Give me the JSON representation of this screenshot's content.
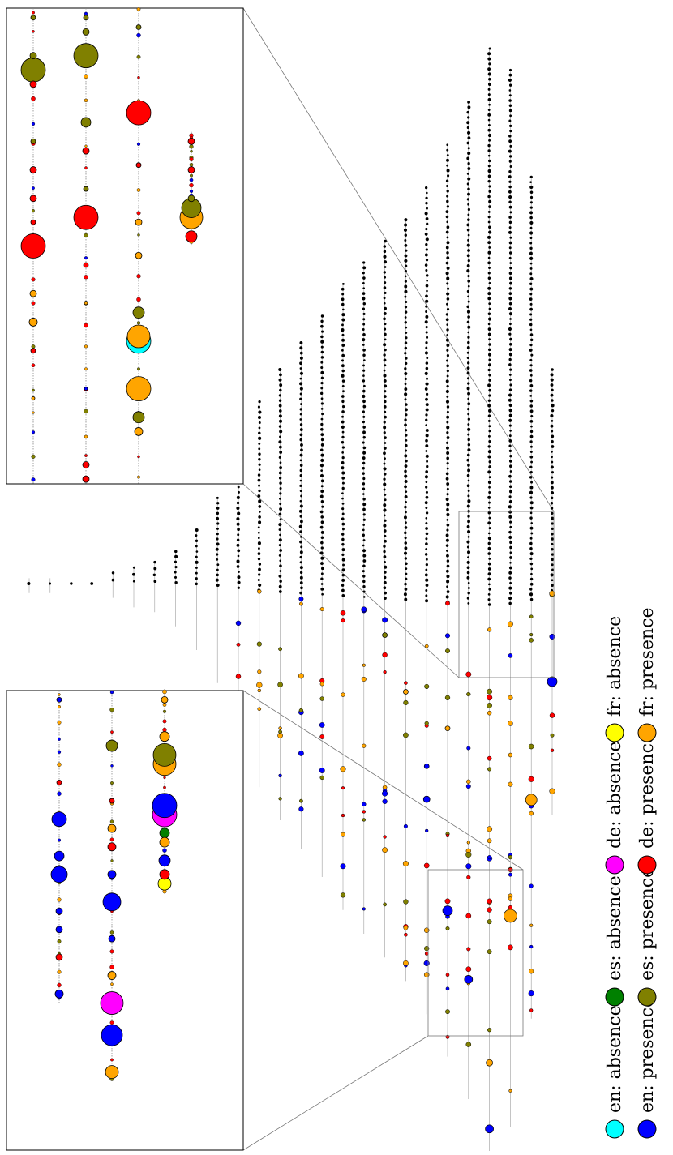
{
  "chart_data": {
    "type": "scatter",
    "title": "",
    "xlabel": "",
    "ylabel": "",
    "grid": false,
    "legend_placement": "right (rotated)",
    "legend": [
      {
        "label": "en: absence",
        "color": "#00ffff"
      },
      {
        "label": "en: presence",
        "color": "#0000ff"
      },
      {
        "label": "es: absence",
        "color": "#008000"
      },
      {
        "label": "es: presence",
        "color": "#808000"
      },
      {
        "label": "de: absence",
        "color": "#ff00ff"
      },
      {
        "label": "de: presence",
        "color": "#ff0000"
      },
      {
        "label": "fr: absence",
        "color": "#ffff00"
      },
      {
        "label": "fr: presence",
        "color": "#ffa500"
      }
    ],
    "main_tree": {
      "node_color": "#000000",
      "edge_color": "#9e9e9e",
      "columns": [
        {
          "size": 1,
          "spread": 1
        },
        {
          "size": 1,
          "spread": 1
        },
        {
          "size": 1,
          "spread": 1
        },
        {
          "size": 1,
          "spread": 1
        },
        {
          "size": 2,
          "spread": 1
        },
        {
          "size": 3,
          "spread": 2
        },
        {
          "size": 4,
          "spread": 2
        },
        {
          "size": 6,
          "spread": 3
        },
        {
          "size": 10,
          "spread": 4
        },
        {
          "size": 16,
          "spread": 5
        },
        {
          "size": 24,
          "spread": 7
        },
        {
          "size": 34,
          "spread": 9
        },
        {
          "size": 40,
          "spread": 10
        },
        {
          "size": 45,
          "spread": 11
        },
        {
          "size": 50,
          "spread": 12
        },
        {
          "size": 56,
          "spread": 13
        },
        {
          "size": 60,
          "spread": 14
        },
        {
          "size": 64,
          "spread": 15
        },
        {
          "size": 68,
          "spread": 16
        },
        {
          "size": 74,
          "spread": 17
        },
        {
          "size": 82,
          "spread": 18
        },
        {
          "size": 90,
          "spread": 19
        },
        {
          "size": 100,
          "spread": 20
        },
        {
          "size": 96,
          "spread": 19
        },
        {
          "size": 76,
          "spread": 16
        },
        {
          "size": 40,
          "spread": 9
        }
      ],
      "colored_nodes": [
        {
          "col": 17,
          "pos": 0.55,
          "cat": "es: presence",
          "r": 3
        },
        {
          "col": 18,
          "pos": 0.62,
          "cat": "fr: presence",
          "r": 3
        },
        {
          "col": 19,
          "pos": 0.7,
          "cat": "en: presence",
          "r": 3
        },
        {
          "col": 19,
          "pos": 0.74,
          "cat": "en: presence",
          "r": 4
        },
        {
          "col": 20,
          "pos": 0.64,
          "cat": "fr: presence",
          "r": 3
        },
        {
          "col": 20,
          "pos": 0.84,
          "cat": "en: presence",
          "r": 6
        },
        {
          "col": 21,
          "pos": 0.88,
          "cat": "en: presence",
          "r": 5
        },
        {
          "col": 22,
          "pos": 0.92,
          "cat": "fr: presence",
          "r": 4
        },
        {
          "col": 22,
          "pos": 0.98,
          "cat": "en: presence",
          "r": 5
        },
        {
          "col": 23,
          "pos": 0.8,
          "cat": "fr: presence",
          "r": 8
        },
        {
          "col": 24,
          "pos": 0.74,
          "cat": "fr: presence",
          "r": 7
        },
        {
          "col": 25,
          "pos": 0.7,
          "cat": "en: presence",
          "r": 6
        }
      ]
    },
    "zoom_boxes": [
      {
        "name": "upper inset",
        "columns": [
          {
            "nodes": [
              {
                "pos": 0.02,
                "cat": "es: presence",
                "r": 3
              },
              {
                "pos": 0.1,
                "cat": "es: presence",
                "r": 4
              },
              {
                "pos": 0.13,
                "cat": "es: presence",
                "r": 15
              },
              {
                "pos": 0.16,
                "cat": "de: presence",
                "r": 4
              },
              {
                "pos": 0.28,
                "cat": "es: presence",
                "r": 3
              },
              {
                "pos": 0.34,
                "cat": "de: presence",
                "r": 4
              },
              {
                "pos": 0.4,
                "cat": "de: presence",
                "r": 4
              },
              {
                "pos": 0.45,
                "cat": "de: presence",
                "r": 3
              },
              {
                "pos": 0.5,
                "cat": "de: presence",
                "r": 15
              },
              {
                "pos": 0.6,
                "cat": "fr: presence",
                "r": 4
              },
              {
                "pos": 0.66,
                "cat": "fr: presence",
                "r": 5
              },
              {
                "pos": 0.72,
                "cat": "de: presence",
                "r": 3
              },
              {
                "pos": 0.82,
                "cat": "fr: presence",
                "r": 2
              }
            ]
          },
          {
            "nodes": [
              {
                "pos": 0.02,
                "cat": "es: presence",
                "r": 3
              },
              {
                "pos": 0.05,
                "cat": "es: presence",
                "r": 4
              },
              {
                "pos": 0.1,
                "cat": "es: presence",
                "r": 15
              },
              {
                "pos": 0.24,
                "cat": "es: presence",
                "r": 6
              },
              {
                "pos": 0.3,
                "cat": "de: presence",
                "r": 4
              },
              {
                "pos": 0.38,
                "cat": "es: presence",
                "r": 3
              },
              {
                "pos": 0.44,
                "cat": "de: presence",
                "r": 15
              },
              {
                "pos": 0.54,
                "cat": "de: presence",
                "r": 3
              },
              {
                "pos": 0.62,
                "cat": "fr: presence",
                "r": 2
              },
              {
                "pos": 0.8,
                "cat": "en: presence",
                "r": 2
              },
              {
                "pos": 0.96,
                "cat": "de: presence",
                "r": 4
              },
              {
                "pos": 0.99,
                "cat": "de: presence",
                "r": 4
              }
            ]
          },
          {
            "nodes": [
              {
                "pos": 0.04,
                "cat": "es: presence",
                "r": 3
              },
              {
                "pos": 0.22,
                "cat": "de: presence",
                "r": 15
              },
              {
                "pos": 0.33,
                "cat": "de: presence",
                "r": 3
              },
              {
                "pos": 0.45,
                "cat": "fr: presence",
                "r": 4
              },
              {
                "pos": 0.52,
                "cat": "fr: presence",
                "r": 4
              },
              {
                "pos": 0.64,
                "cat": "es: presence",
                "r": 7
              },
              {
                "pos": 0.7,
                "cat": "en: absence",
                "r": 15
              },
              {
                "pos": 0.69,
                "cat": "fr: presence",
                "r": 14
              },
              {
                "pos": 0.8,
                "cat": "fr: presence",
                "r": 15
              },
              {
                "pos": 0.86,
                "cat": "es: presence",
                "r": 7
              },
              {
                "pos": 0.89,
                "cat": "fr: presence",
                "r": 5
              }
            ]
          },
          {
            "nodes": [
              {
                "pos": 0.28,
                "cat": "de: presence",
                "r": 4
              },
              {
                "pos": 0.34,
                "cat": "de: presence",
                "r": 4
              },
              {
                "pos": 0.4,
                "cat": "es: presence",
                "r": 4
              },
              {
                "pos": 0.44,
                "cat": "fr: presence",
                "r": 14
              },
              {
                "pos": 0.42,
                "cat": "es: presence",
                "r": 12
              },
              {
                "pos": 0.48,
                "cat": "de: presence",
                "r": 7
              }
            ]
          }
        ]
      },
      {
        "name": "lower inset",
        "columns": [
          {
            "nodes": [
              {
                "pos": 0.02,
                "cat": "en: presence",
                "r": 3
              },
              {
                "pos": 0.2,
                "cat": "de: presence",
                "r": 3
              },
              {
                "pos": 0.28,
                "cat": "en: presence",
                "r": 9
              },
              {
                "pos": 0.36,
                "cat": "en: presence",
                "r": 6
              },
              {
                "pos": 0.4,
                "cat": "en: presence",
                "r": 10
              },
              {
                "pos": 0.48,
                "cat": "en: presence",
                "r": 4
              },
              {
                "pos": 0.52,
                "cat": "en: presence",
                "r": 4
              },
              {
                "pos": 0.58,
                "cat": "de: presence",
                "r": 4
              },
              {
                "pos": 0.66,
                "cat": "en: presence",
                "r": 5
              }
            ]
          },
          {
            "nodes": [
              {
                "pos": 0.12,
                "cat": "es: presence",
                "r": 7
              },
              {
                "pos": 0.24,
                "cat": "de: presence",
                "r": 3
              },
              {
                "pos": 0.3,
                "cat": "fr: presence",
                "r": 5
              },
              {
                "pos": 0.34,
                "cat": "de: presence",
                "r": 5
              },
              {
                "pos": 0.4,
                "cat": "en: presence",
                "r": 5
              },
              {
                "pos": 0.46,
                "cat": "en: presence",
                "r": 11
              },
              {
                "pos": 0.54,
                "cat": "en: presence",
                "r": 4
              },
              {
                "pos": 0.62,
                "cat": "fr: presence",
                "r": 5
              },
              {
                "pos": 0.68,
                "cat": "de: absence",
                "r": 14
              },
              {
                "pos": 0.75,
                "cat": "en: presence",
                "r": 13
              },
              {
                "pos": 0.83,
                "cat": "fr: presence",
                "r": 8
              }
            ]
          },
          {
            "nodes": [
              {
                "pos": 0.02,
                "cat": "fr: presence",
                "r": 4
              },
              {
                "pos": 0.1,
                "cat": "fr: presence",
                "r": 6
              },
              {
                "pos": 0.16,
                "cat": "fr: presence",
                "r": 14
              },
              {
                "pos": 0.14,
                "cat": "es: presence",
                "r": 14
              },
              {
                "pos": 0.27,
                "cat": "de: absence",
                "r": 15
              },
              {
                "pos": 0.25,
                "cat": "en: presence",
                "r": 15
              },
              {
                "pos": 0.31,
                "cat": "es: absence",
                "r": 6
              },
              {
                "pos": 0.33,
                "cat": "fr: presence",
                "r": 6
              },
              {
                "pos": 0.37,
                "cat": "en: presence",
                "r": 7
              },
              {
                "pos": 0.4,
                "cat": "de: presence",
                "r": 6
              },
              {
                "pos": 0.42,
                "cat": "fr: absence",
                "r": 8
              }
            ]
          }
        ]
      }
    ]
  }
}
